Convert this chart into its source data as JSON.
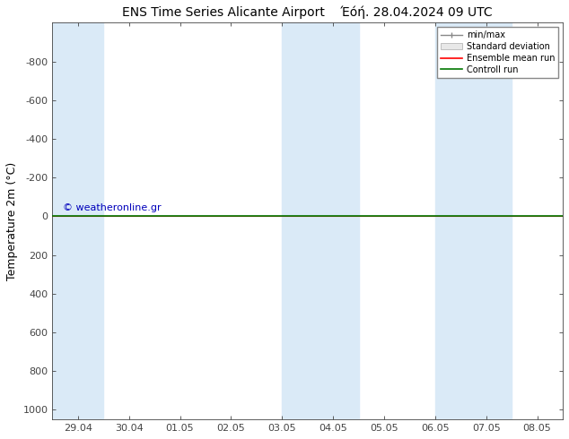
{
  "title": "ENS Time Series Alicante Airport    Έόή. 28.04.2024 09 UTC",
  "ylabel": "Temperature 2m (°C)",
  "ylim_bottom": -1000,
  "ylim_top": 1050,
  "yticks": [
    -800,
    -600,
    -400,
    -200,
    0,
    200,
    400,
    600,
    800,
    1000
  ],
  "xlim_start": -0.5,
  "xlim_end": 9.5,
  "xtick_labels": [
    "29.04",
    "30.04",
    "01.05",
    "02.05",
    "03.05",
    "04.05",
    "05.05",
    "06.05",
    "07.05",
    "08.05"
  ],
  "xtick_positions": [
    0,
    1,
    2,
    3,
    4,
    5,
    6,
    7,
    8,
    9
  ],
  "blue_shade_ranges": [
    [
      -0.5,
      0.5
    ],
    [
      4.0,
      5.5
    ],
    [
      7.0,
      8.5
    ]
  ],
  "green_line_y": 0,
  "red_line_y": 0,
  "watermark": "© weatheronline.gr",
  "watermark_color": "#0000bb",
  "legend_items": [
    "min/max",
    "Standard deviation",
    "Ensemble mean run",
    "Controll run"
  ],
  "legend_line_color": "#888888",
  "legend_std_face": "#e8e8e8",
  "legend_std_edge": "#aaaaaa",
  "legend_red": "#ff0000",
  "legend_green": "#007700",
  "blue_shade_color": "#daeaf7",
  "background_color": "#ffffff",
  "plot_background": "#ffffff",
  "font_size_title": 10,
  "font_size_axis": 9,
  "font_size_tick": 8,
  "font_size_legend": 7,
  "spine_color": "#444444",
  "tick_color": "#444444"
}
